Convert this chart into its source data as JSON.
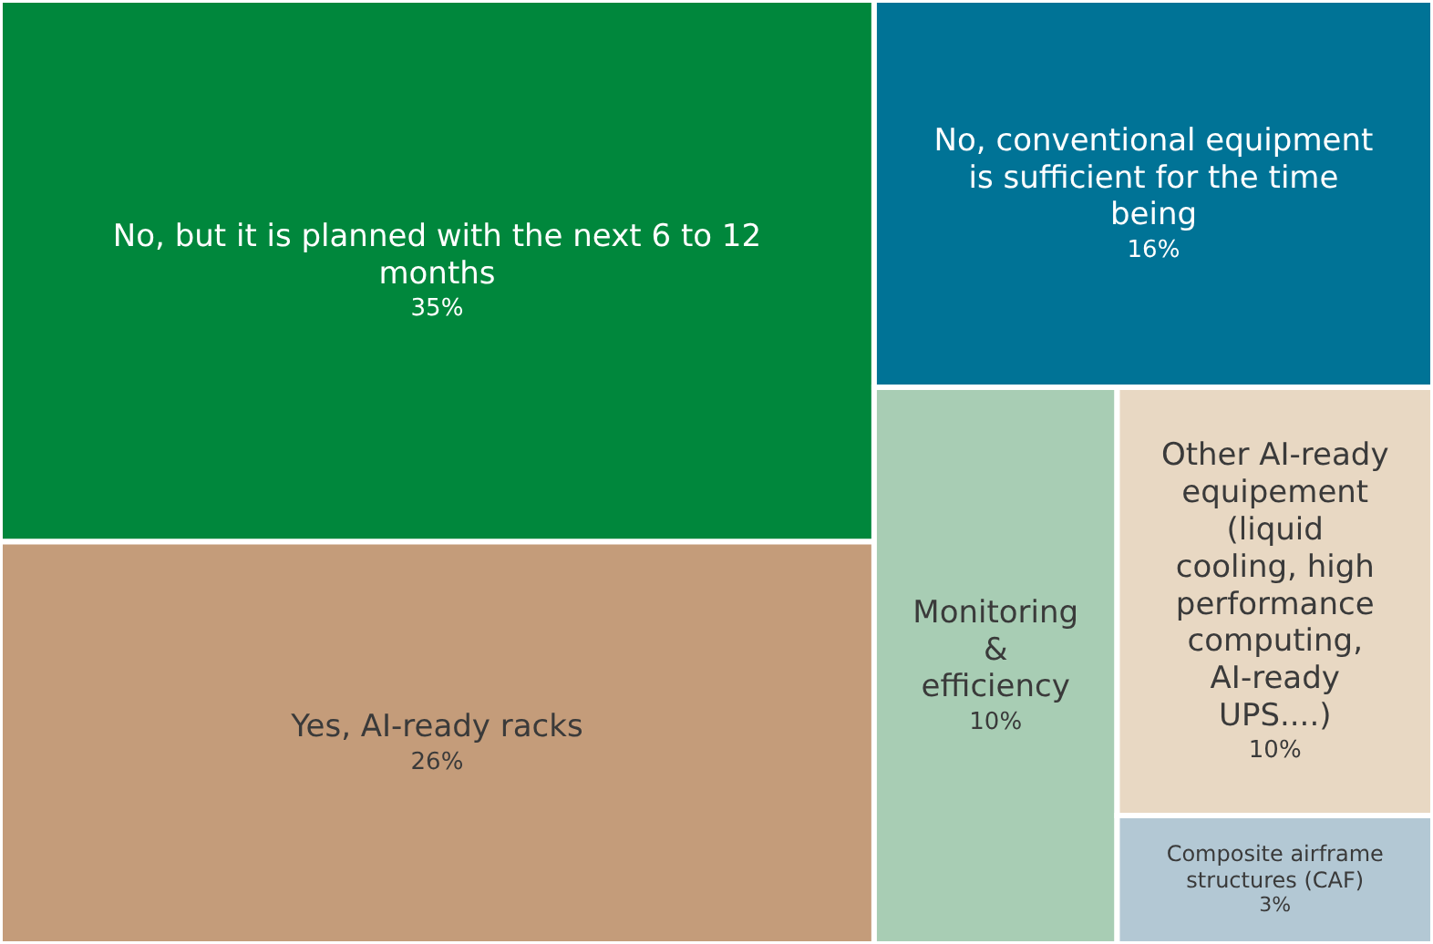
{
  "chart_data": {
    "type": "other",
    "categories": [
      "No, but it is planned with the next 6 to 12 months",
      "Yes, AI-ready racks",
      "No, conventional equipment is sufficient for the time being",
      "Monitoring & efficiency",
      "Other AI-ready equipement (liquid cooling, high performance computing, AI-ready UPS....)",
      "Composite airframe structures (CAF)"
    ],
    "values": [
      35,
      26,
      16,
      10,
      10,
      3
    ],
    "value_labels": [
      "35%",
      "26%",
      "16%",
      "10%",
      "10%",
      "3%"
    ],
    "colors": [
      "#00873c",
      "#c49c7a",
      "#007396",
      "#a8cdb4",
      "#e8d8c3",
      "#b3c8d4"
    ]
  }
}
